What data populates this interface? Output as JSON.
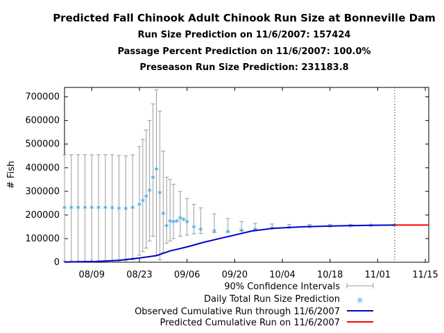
{
  "chart_data": {
    "type": "line",
    "title": "Predicted Fall Chinook Adult Chinook Run Size at Bonneville Dam",
    "subtitles": [
      "Run Size Prediction on 11/6/2007: 157424",
      "Passage Percent Prediction on 11/6/2007: 100.0%",
      "Preseason Run Size Prediction: 231183.8"
    ],
    "ylabel": "# Fish",
    "xlabel": "",
    "ylim": [
      0,
      740000
    ],
    "xlim": [
      "2007-08-01",
      "2007-11-16"
    ],
    "y_ticks": [
      0,
      100000,
      200000,
      300000,
      400000,
      500000,
      600000,
      700000
    ],
    "y_tick_labels": [
      "0",
      "100000",
      "200000",
      "300000",
      "400000",
      "500000",
      "600000",
      "700000"
    ],
    "x_ticks": [
      "2007-08-09",
      "2007-08-23",
      "2007-09-06",
      "2007-09-20",
      "2007-10-04",
      "2007-10-18",
      "2007-11-01",
      "2007-11-15"
    ],
    "x_tick_labels": [
      "08/09",
      "08/23",
      "09/06",
      "09/20",
      "10/04",
      "10/18",
      "11/01",
      "11/15"
    ],
    "vertical_line_date": "2007-11-06",
    "grid": false,
    "legend_position": "bottom-right",
    "series": [
      {
        "name": "90% Confidence Intervals",
        "style": "errorbar",
        "color": "#9a9a9a",
        "x": [
          "2007-08-01",
          "2007-08-03",
          "2007-08-05",
          "2007-08-07",
          "2007-08-09",
          "2007-08-11",
          "2007-08-13",
          "2007-08-15",
          "2007-08-17",
          "2007-08-19",
          "2007-08-21",
          "2007-08-23",
          "2007-08-24",
          "2007-08-25",
          "2007-08-26",
          "2007-08-27",
          "2007-08-28",
          "2007-08-29",
          "2007-08-30",
          "2007-08-31",
          "2007-09-01",
          "2007-09-02",
          "2007-09-04",
          "2007-09-06",
          "2007-09-08",
          "2007-09-10",
          "2007-09-14",
          "2007-09-18",
          "2007-09-22",
          "2007-09-26",
          "2007-10-01",
          "2007-10-06",
          "2007-10-12",
          "2007-10-18",
          "2007-10-24",
          "2007-10-30",
          "2007-11-06"
        ],
        "low": [
          5000,
          5000,
          5000,
          5000,
          5000,
          5000,
          5000,
          5000,
          5000,
          6000,
          10000,
          30000,
          45000,
          60000,
          90000,
          110000,
          30000,
          10000,
          40000,
          80000,
          90000,
          100000,
          110000,
          115000,
          120000,
          122000,
          125000,
          128000,
          135000,
          140000,
          145000,
          148000,
          150000,
          153000,
          155000,
          156000,
          157000
        ],
        "high": [
          455000,
          455000,
          455000,
          455000,
          455000,
          455000,
          455000,
          455000,
          452000,
          450000,
          455000,
          490000,
          520000,
          560000,
          600000,
          670000,
          730000,
          640000,
          470000,
          360000,
          350000,
          330000,
          300000,
          270000,
          245000,
          230000,
          205000,
          185000,
          172000,
          165000,
          162000,
          160000,
          160000,
          160000,
          159000,
          158500,
          158000
        ]
      },
      {
        "name": "Daily Total Run Size Prediction",
        "style": "points",
        "color": "#44aadd",
        "x": [
          "2007-08-01",
          "2007-08-03",
          "2007-08-05",
          "2007-08-07",
          "2007-08-09",
          "2007-08-11",
          "2007-08-13",
          "2007-08-15",
          "2007-08-17",
          "2007-08-19",
          "2007-08-21",
          "2007-08-23",
          "2007-08-24",
          "2007-08-25",
          "2007-08-26",
          "2007-08-27",
          "2007-08-28",
          "2007-08-29",
          "2007-08-30",
          "2007-08-31",
          "2007-09-01",
          "2007-09-02",
          "2007-09-03",
          "2007-09-04",
          "2007-09-05",
          "2007-09-06",
          "2007-09-08",
          "2007-09-10",
          "2007-09-14",
          "2007-09-18",
          "2007-09-22",
          "2007-09-26",
          "2007-10-01",
          "2007-10-06",
          "2007-10-12",
          "2007-10-18",
          "2007-10-24",
          "2007-10-30",
          "2007-11-06"
        ],
        "values": [
          232000,
          232000,
          232000,
          232000,
          232000,
          232000,
          232000,
          231000,
          229000,
          228000,
          232000,
          245000,
          262000,
          280000,
          305000,
          360000,
          395000,
          295000,
          207000,
          155000,
          175000,
          172000,
          175000,
          188000,
          182000,
          172000,
          150000,
          140000,
          133000,
          130000,
          135000,
          140000,
          145000,
          148000,
          151000,
          153000,
          155000,
          156500,
          157424
        ]
      },
      {
        "name": "Observed Cumulative Run through 11/6/2007",
        "style": "line",
        "color": "#0000cc",
        "x": [
          "2007-08-01",
          "2007-08-10",
          "2007-08-17",
          "2007-08-23",
          "2007-08-28",
          "2007-09-01",
          "2007-09-06",
          "2007-09-11",
          "2007-09-16",
          "2007-09-20",
          "2007-09-25",
          "2007-10-01",
          "2007-10-10",
          "2007-10-20",
          "2007-10-30",
          "2007-11-06"
        ],
        "values": [
          1000,
          3000,
          8000,
          18000,
          28000,
          48000,
          65000,
          85000,
          102000,
          115000,
          132000,
          143000,
          150000,
          154000,
          156500,
          157424
        ]
      },
      {
        "name": "Predicted Cumulative Run on 11/6/2007",
        "style": "line",
        "color": "#ff0000",
        "x": [
          "2007-11-06",
          "2007-11-16"
        ],
        "values": [
          157424,
          157424
        ]
      }
    ]
  }
}
